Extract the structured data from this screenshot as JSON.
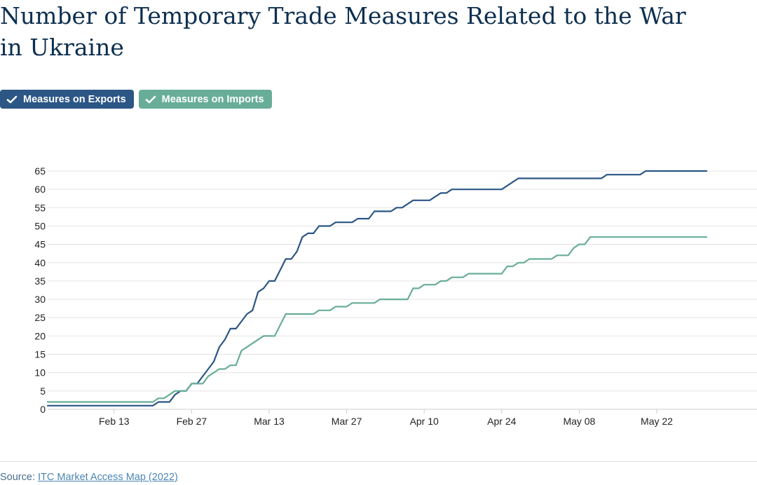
{
  "title": "Number of Temporary Trade Measures Related to the War in Ukraine",
  "legend": [
    {
      "label": "Measures on Exports",
      "color": "#2b5685"
    },
    {
      "label": "Measures on Imports",
      "color": "#68ad98"
    }
  ],
  "source": {
    "prefix": "Source: ",
    "link_text": "ITC Market Access Map (2022)"
  },
  "chart_data": {
    "type": "line",
    "xlabel": "",
    "ylabel": "",
    "x_ticks": [
      "Feb 13",
      "Feb 27",
      "Mar 13",
      "Mar 27",
      "Apr 10",
      "Apr 24",
      "May 08",
      "May 22"
    ],
    "x_range": [
      "2022-02-01",
      "2022-06-05"
    ],
    "ylim": [
      0,
      65
    ],
    "y_ticks": [
      0,
      5,
      10,
      15,
      20,
      25,
      30,
      35,
      40,
      45,
      50,
      55,
      60,
      65
    ],
    "grid": true,
    "series": [
      {
        "name": "Measures on Exports",
        "color": "#2b5685",
        "points": [
          [
            "2022-02-01",
            1
          ],
          [
            "2022-02-20",
            1
          ],
          [
            "2022-02-21",
            2
          ],
          [
            "2022-02-23",
            2
          ],
          [
            "2022-02-24",
            4
          ],
          [
            "2022-02-25",
            5
          ],
          [
            "2022-02-26",
            5
          ],
          [
            "2022-02-27",
            7
          ],
          [
            "2022-02-28",
            7
          ],
          [
            "2022-03-01",
            9
          ],
          [
            "2022-03-02",
            11
          ],
          [
            "2022-03-03",
            13
          ],
          [
            "2022-03-04",
            17
          ],
          [
            "2022-03-05",
            19
          ],
          [
            "2022-03-06",
            22
          ],
          [
            "2022-03-07",
            22
          ],
          [
            "2022-03-08",
            24
          ],
          [
            "2022-03-09",
            26
          ],
          [
            "2022-03-10",
            27
          ],
          [
            "2022-03-11",
            32
          ],
          [
            "2022-03-12",
            33
          ],
          [
            "2022-03-13",
            35
          ],
          [
            "2022-03-14",
            35
          ],
          [
            "2022-03-15",
            38
          ],
          [
            "2022-03-16",
            41
          ],
          [
            "2022-03-17",
            41
          ],
          [
            "2022-03-18",
            43
          ],
          [
            "2022-03-19",
            47
          ],
          [
            "2022-03-20",
            48
          ],
          [
            "2022-03-21",
            48
          ],
          [
            "2022-03-22",
            50
          ],
          [
            "2022-03-24",
            50
          ],
          [
            "2022-03-25",
            51
          ],
          [
            "2022-03-28",
            51
          ],
          [
            "2022-03-29",
            52
          ],
          [
            "2022-03-31",
            52
          ],
          [
            "2022-04-01",
            54
          ],
          [
            "2022-04-04",
            54
          ],
          [
            "2022-04-05",
            55
          ],
          [
            "2022-04-06",
            55
          ],
          [
            "2022-04-08",
            57
          ],
          [
            "2022-04-11",
            57
          ],
          [
            "2022-04-12",
            58
          ],
          [
            "2022-04-13",
            59
          ],
          [
            "2022-04-14",
            59
          ],
          [
            "2022-04-15",
            60
          ],
          [
            "2022-04-24",
            60
          ],
          [
            "2022-04-26",
            62
          ],
          [
            "2022-04-27",
            63
          ],
          [
            "2022-05-12",
            63
          ],
          [
            "2022-05-13",
            64
          ],
          [
            "2022-05-19",
            64
          ],
          [
            "2022-05-20",
            65
          ],
          [
            "2022-05-31",
            65
          ]
        ]
      },
      {
        "name": "Measures on Imports",
        "color": "#68ad98",
        "points": [
          [
            "2022-02-01",
            2
          ],
          [
            "2022-02-20",
            2
          ],
          [
            "2022-02-21",
            3
          ],
          [
            "2022-02-22",
            3
          ],
          [
            "2022-02-23",
            4
          ],
          [
            "2022-02-24",
            5
          ],
          [
            "2022-02-26",
            5
          ],
          [
            "2022-02-27",
            7
          ],
          [
            "2022-02-28",
            7
          ],
          [
            "2022-03-01",
            7
          ],
          [
            "2022-03-02",
            9
          ],
          [
            "2022-03-03",
            10
          ],
          [
            "2022-03-04",
            11
          ],
          [
            "2022-03-05",
            11
          ],
          [
            "2022-03-06",
            12
          ],
          [
            "2022-03-07",
            12
          ],
          [
            "2022-03-08",
            16
          ],
          [
            "2022-03-09",
            17
          ],
          [
            "2022-03-10",
            18
          ],
          [
            "2022-03-11",
            19
          ],
          [
            "2022-03-12",
            20
          ],
          [
            "2022-03-14",
            20
          ],
          [
            "2022-03-15",
            23
          ],
          [
            "2022-03-16",
            26
          ],
          [
            "2022-03-21",
            26
          ],
          [
            "2022-03-22",
            27
          ],
          [
            "2022-03-24",
            27
          ],
          [
            "2022-03-25",
            28
          ],
          [
            "2022-03-27",
            28
          ],
          [
            "2022-03-28",
            29
          ],
          [
            "2022-04-01",
            29
          ],
          [
            "2022-04-02",
            30
          ],
          [
            "2022-04-07",
            30
          ],
          [
            "2022-04-08",
            33
          ],
          [
            "2022-04-09",
            33
          ],
          [
            "2022-04-10",
            34
          ],
          [
            "2022-04-12",
            34
          ],
          [
            "2022-04-13",
            35
          ],
          [
            "2022-04-14",
            35
          ],
          [
            "2022-04-15",
            36
          ],
          [
            "2022-04-17",
            36
          ],
          [
            "2022-04-18",
            37
          ],
          [
            "2022-04-23",
            37
          ],
          [
            "2022-04-24",
            37
          ],
          [
            "2022-04-25",
            39
          ],
          [
            "2022-04-26",
            39
          ],
          [
            "2022-04-27",
            40
          ],
          [
            "2022-04-28",
            40
          ],
          [
            "2022-04-29",
            41
          ],
          [
            "2022-05-03",
            41
          ],
          [
            "2022-05-04",
            42
          ],
          [
            "2022-05-06",
            42
          ],
          [
            "2022-05-07",
            44
          ],
          [
            "2022-05-08",
            45
          ],
          [
            "2022-05-09",
            45
          ],
          [
            "2022-05-10",
            47
          ],
          [
            "2022-05-31",
            47
          ]
        ]
      }
    ]
  }
}
